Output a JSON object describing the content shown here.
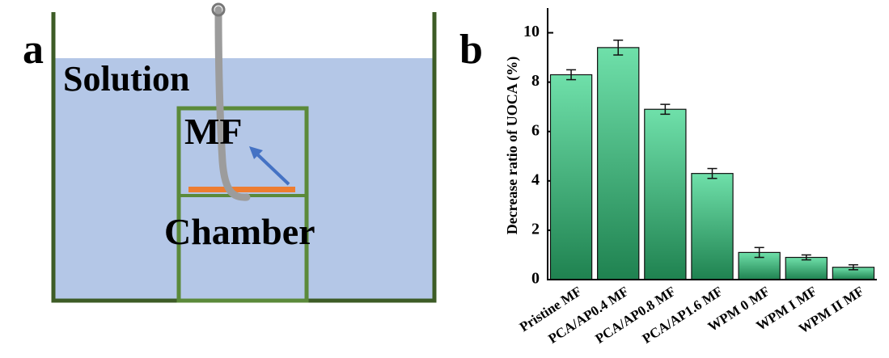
{
  "diagram": {
    "panel_label": "a",
    "labels": [
      "Solution",
      "MF",
      "Chamber"
    ]
  },
  "chart_data": {
    "type": "bar",
    "panel_label": "b",
    "y_label": "Decrease ratio of UOCA (%)",
    "categories": [
      "Pristine MF",
      "PCA/AP0.4 MF",
      "PCA/AP0.8 MF",
      "PCA/AP1.6 MF",
      "WPM 0 MF",
      "WPM I MF",
      "WPM II MF"
    ],
    "values": [
      8.3,
      9.4,
      6.9,
      4.3,
      1.1,
      0.9,
      0.5
    ],
    "errors": [
      0.2,
      0.3,
      0.2,
      0.2,
      0.2,
      0.1,
      0.1
    ],
    "gradient": [
      "#6fe0aa",
      "#1f8250"
    ],
    "ylim": [
      0,
      11
    ],
    "yticks": [
      0,
      2,
      4,
      6,
      8,
      10
    ]
  }
}
